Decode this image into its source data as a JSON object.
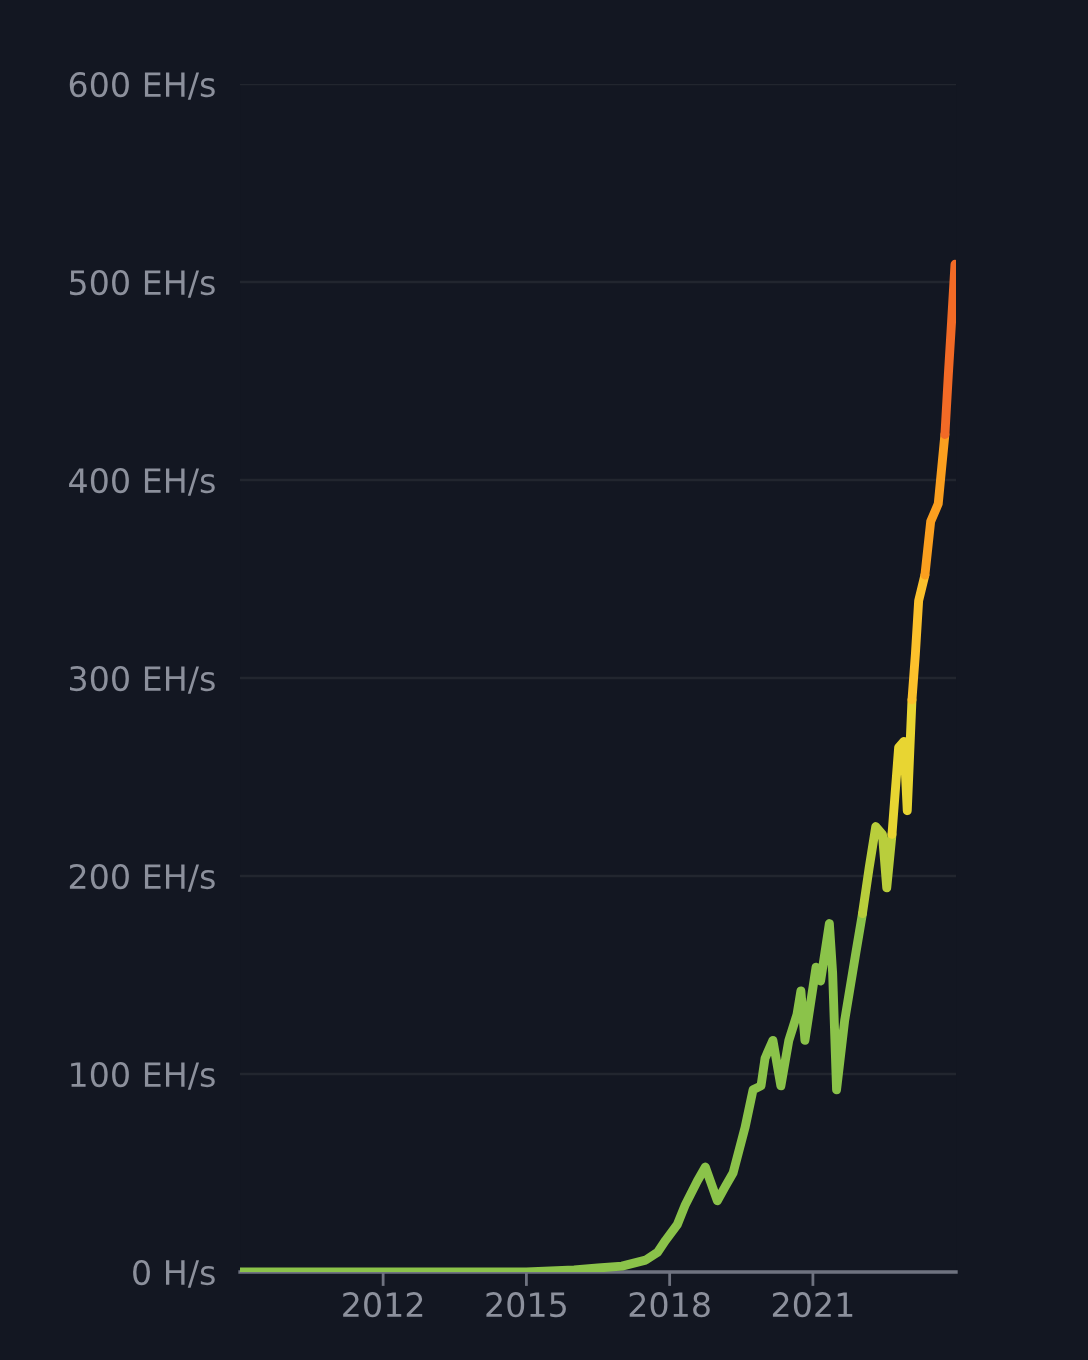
{
  "chart_data": {
    "type": "line",
    "series": [
      {
        "color": "#8bc34a",
        "x": [
          "2009-01",
          "2011-01",
          "2013-01",
          "2015-01",
          "2016-01",
          "2016-07",
          "2017-01",
          "2017-07",
          "2017-10",
          "2017-12",
          "2018-03",
          "2018-05",
          "2018-08",
          "2018-10",
          "2019-01",
          "2019-03",
          "2019-05",
          "2019-08",
          "2019-10",
          "2019-12",
          "2020-01",
          "2020-03",
          "2020-05",
          "2020-07",
          "2020-09",
          "2020-10",
          "2020-11",
          "2021-01-25",
          "2021-03",
          "2021-05-07",
          "2021-06",
          "2021-07",
          "2021-09",
          "2021-11-25",
          "2022-01-15"
        ],
        "values": [
          0,
          0,
          0,
          0,
          1,
          2,
          3,
          6,
          10,
          16,
          24,
          34,
          46,
          53,
          36,
          43,
          50,
          73,
          92,
          94,
          108,
          117,
          94,
          117,
          130,
          142,
          117,
          154,
          147,
          176,
          151,
          92,
          127,
          161,
          181
        ]
      },
      {
        "color": "#b9ce3c",
        "x": [
          "2022-01-15",
          "2022-03-07",
          "2022-04-27",
          "2022-06-17",
          "2022-07-20",
          "2022-08-29"
        ],
        "values": [
          181,
          204,
          225,
          221,
          194,
          221
        ]
      },
      {
        "color": "#e8d532",
        "x": [
          "2022-08-29",
          "2022-10-19",
          "2022-11-28",
          "2022-12-24",
          "2023-01-29"
        ],
        "values": [
          221,
          265,
          268,
          233,
          289
        ]
      },
      {
        "color": "#fcc12c",
        "x": [
          "2023-01-29",
          "2023-02-24",
          "2023-03-21",
          "2023-05-08"
        ],
        "values": [
          289,
          312,
          339,
          352
        ]
      },
      {
        "color": "#fb9f1f",
        "x": [
          "2023-05-08",
          "2023-06-21",
          "2023-08-18",
          "2023-09-13",
          "2023-10-08"
        ],
        "values": [
          352,
          379,
          388,
          406,
          423
        ]
      },
      {
        "color": "#f26a26",
        "x": [
          "2023-10-08",
          "2023-11-03",
          "2023-11-28",
          "2023-12-24"
        ],
        "values": [
          423,
          453,
          480,
          509
        ]
      }
    ],
    "xlim": [
      "2009-01",
      "2024-01"
    ],
    "xticks": [
      "2012",
      "2015",
      "2018",
      "2021"
    ],
    "ylim": [
      0,
      600
    ],
    "yticks": [
      {
        "value": 0,
        "label": "0 H/s"
      },
      {
        "value": 100,
        "label": "100 EH/s"
      },
      {
        "value": 200,
        "label": "200 EH/s"
      },
      {
        "value": 300,
        "label": "300 EH/s"
      },
      {
        "value": 400,
        "label": "400 EH/s"
      },
      {
        "value": 500,
        "label": "500 EH/s"
      },
      {
        "value": 600,
        "label": "600 EH/s"
      }
    ],
    "grid": "y"
  }
}
